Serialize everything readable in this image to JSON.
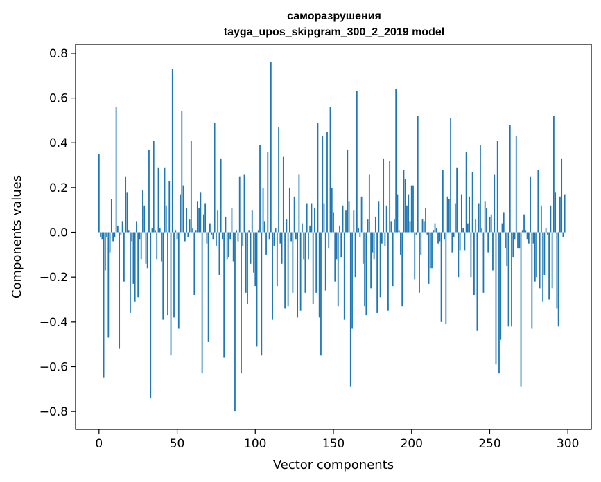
{
  "chart_data": {
    "type": "bar",
    "title": "саморазрушения",
    "subtitle": "tayga_upos_skipgram_300_2_2019 model",
    "xlabel": "Vector components",
    "ylabel": "Components values",
    "xlim": [
      -15,
      315
    ],
    "ylim": [
      -0.88,
      0.84
    ],
    "xticks": [
      0,
      50,
      100,
      150,
      200,
      250,
      300
    ],
    "yticks": [
      -0.8,
      -0.6,
      -0.4,
      -0.2,
      0.0,
      0.2,
      0.4,
      0.6,
      0.8
    ],
    "ytick_labels": [
      "−0.8",
      "−0.6",
      "−0.4",
      "−0.2",
      "0.0",
      "0.2",
      "0.4",
      "0.6",
      "0.8"
    ],
    "grid": false,
    "color": "#1f77b4",
    "values": [
      0.35,
      -0.02,
      -0.03,
      -0.65,
      -0.17,
      -0.02,
      -0.47,
      -0.09,
      0.15,
      -0.04,
      -0.02,
      0.56,
      0.03,
      -0.52,
      -0.01,
      0.05,
      -0.22,
      0.25,
      0.18,
      0.01,
      -0.36,
      -0.04,
      -0.23,
      -0.31,
      0.05,
      -0.29,
      -0.03,
      -0.12,
      0.19,
      0.12,
      -0.14,
      -0.16,
      0.37,
      -0.74,
      0.02,
      0.41,
      0.01,
      -0.12,
      0.29,
      0.02,
      -0.13,
      -0.39,
      0.29,
      0.12,
      -0.37,
      0.23,
      -0.55,
      0.73,
      -0.38,
      0.01,
      -0.03,
      -0.43,
      0.17,
      0.54,
      0.21,
      -0.04,
      0.11,
      -0.02,
      0.06,
      0.41,
      0.02,
      -0.28,
      0.01,
      0.14,
      0.11,
      0.18,
      -0.63,
      0.08,
      0.13,
      -0.05,
      -0.49,
      0.04,
      -0.01,
      -0.03,
      0.49,
      -0.06,
      0.1,
      -0.19,
      0.33,
      -0.03,
      -0.56,
      0.07,
      -0.12,
      -0.11,
      -0.03,
      0.11,
      -0.13,
      -0.8,
      0.01,
      -0.04,
      0.25,
      -0.63,
      -0.06,
      0.26,
      -0.27,
      -0.32,
      0.01,
      -0.14,
      0.1,
      -0.18,
      -0.24,
      -0.51,
      0.01,
      0.39,
      -0.55,
      0.2,
      0.05,
      -0.1,
      0.36,
      -0.03,
      0.76,
      -0.39,
      -0.06,
      0.02,
      -0.24,
      0.47,
      -0.05,
      -0.14,
      0.34,
      -0.34,
      0.06,
      -0.33,
      0.2,
      -0.04,
      -0.27,
      0.16,
      -0.03,
      -0.38,
      0.26,
      -0.35,
      0.04,
      -0.12,
      -0.27,
      0.13,
      -0.12,
      0.03,
      0.13,
      -0.32,
      0.11,
      -0.27,
      0.49,
      -0.38,
      -0.55,
      0.43,
      0.13,
      -0.26,
      0.45,
      -0.07,
      0.56,
      0.2,
      0.09,
      -0.22,
      -0.12,
      -0.33,
      0.03,
      -0.11,
      0.12,
      -0.39,
      0.1,
      0.37,
      0.14,
      -0.69,
      -0.43,
      0.1,
      -0.2,
      0.63,
      0.02,
      -0.02,
      0.16,
      -0.14,
      -0.33,
      -0.37,
      0.06,
      0.26,
      -0.25,
      -0.09,
      -0.12,
      0.07,
      -0.36,
      0.14,
      -0.29,
      -0.05,
      0.33,
      -0.06,
      0.12,
      -0.35,
      0.32,
      0.05,
      -0.24,
      0.06,
      0.64,
      0.17,
      0.01,
      -0.1,
      -0.33,
      0.28,
      0.24,
      0.12,
      0.17,
      0.05,
      0.21,
      0.21,
      -0.21,
      -0.01,
      0.52,
      -0.27,
      -0.1,
      0.06,
      0.05,
      0.11,
      -0.01,
      -0.23,
      -0.16,
      -0.16,
      0.01,
      0.04,
      0.02,
      -0.05,
      -0.04,
      -0.4,
      0.28,
      -0.03,
      -0.41,
      0.16,
      0.15,
      0.51,
      -0.09,
      -0.02,
      0.13,
      0.29,
      -0.2,
      -0.08,
      0.17,
      0.02,
      -0.08,
      0.36,
      0.04,
      0.16,
      -0.2,
      0.27,
      -0.28,
      0.06,
      -0.44,
      0.13,
      0.39,
      0.02,
      -0.27,
      0.14,
      0.11,
      -0.09,
      0.07,
      0.08,
      -0.17,
      0.26,
      -0.59,
      0.41,
      -0.63,
      -0.48,
      0.04,
      0.09,
      -0.07,
      -0.15,
      -0.42,
      0.48,
      -0.42,
      -0.11,
      -0.03,
      0.43,
      -0.07,
      -0.07,
      -0.69,
      0.01,
      0.08,
      0.01,
      -0.03,
      -0.05,
      0.25,
      -0.43,
      -0.05,
      -0.22,
      -0.2,
      0.28,
      -0.25,
      0.12,
      -0.31,
      -0.19,
      0.02,
      -0.01,
      -0.3,
      0.12,
      -0.25,
      0.52,
      0.18,
      -0.34,
      -0.42,
      0.16,
      0.33,
      -0.02,
      0.17
    ]
  }
}
